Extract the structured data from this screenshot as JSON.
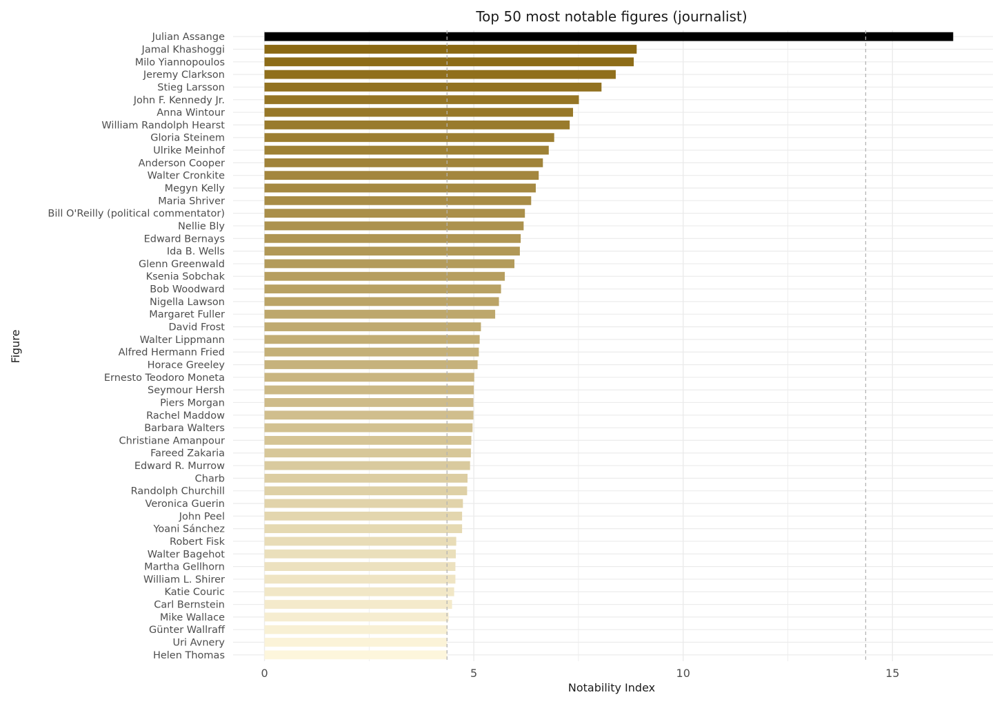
{
  "chart_data": {
    "type": "bar",
    "orientation": "horizontal",
    "title": "Top 50 most notable figures (journalist)",
    "xlabel": "Notability Index",
    "ylabel": "Figure",
    "xlim": [
      -0.75,
      17.4
    ],
    "xticks": [
      0,
      5,
      10,
      15
    ],
    "grid": true,
    "legend": "none",
    "categories": [
      "Julian Assange",
      "Jamal Khashoggi",
      "Milo Yiannopoulos",
      "Jeremy Clarkson",
      "Stieg Larsson",
      "John F. Kennedy Jr.",
      "Anna Wintour",
      "William Randolph Hearst",
      "Gloria Steinem",
      "Ulrike Meinhof",
      "Anderson Cooper",
      "Walter Cronkite",
      "Megyn Kelly",
      "Maria Shriver",
      "Bill O'Reilly (political commentator)",
      "Nellie Bly",
      "Edward Bernays",
      "Ida B. Wells",
      "Glenn Greenwald",
      "Ksenia Sobchak",
      "Bob Woodward",
      "Nigella Lawson",
      "Margaret Fuller",
      "David Frost",
      "Walter Lippmann",
      "Alfred Hermann Fried",
      "Horace Greeley",
      "Ernesto Teodoro Moneta",
      "Seymour Hersh",
      "Piers Morgan",
      "Rachel Maddow",
      "Barbara Walters",
      "Christiane Amanpour",
      "Fareed Zakaria",
      "Edward R. Murrow",
      "Charb",
      "Randolph Churchill",
      "Veronica Guerin",
      "John Peel",
      "Yoani Sánchez",
      "Robert Fisk",
      "Walter Bagehot",
      "Martha Gellhorn",
      "William L. Shirer",
      "Katie Couric",
      "Carl Bernstein",
      "Mike Wallace",
      "Günter Wallraff",
      "Uri Avnery",
      "Helen Thomas"
    ],
    "values": [
      16.45,
      8.89,
      8.82,
      8.39,
      8.05,
      7.51,
      7.37,
      7.29,
      6.92,
      6.79,
      6.65,
      6.55,
      6.48,
      6.37,
      6.22,
      6.19,
      6.12,
      6.1,
      5.97,
      5.74,
      5.65,
      5.6,
      5.51,
      5.17,
      5.14,
      5.12,
      5.09,
      5.01,
      5.0,
      4.99,
      4.99,
      4.97,
      4.94,
      4.93,
      4.91,
      4.85,
      4.84,
      4.74,
      4.72,
      4.72,
      4.58,
      4.57,
      4.56,
      4.56,
      4.53,
      4.48,
      4.4,
      4.37,
      4.36,
      4.36
    ],
    "reference_lines": [
      4.36,
      14.36
    ],
    "colors": {
      "top_bar": "#000000",
      "gradient_start": "#8B6914",
      "gradient_end": "#FDF6DC",
      "grid": "#EBEBEB",
      "reference": "#B3B3B3",
      "text": "#4D4D4D",
      "title": "#1A1A1A"
    }
  }
}
